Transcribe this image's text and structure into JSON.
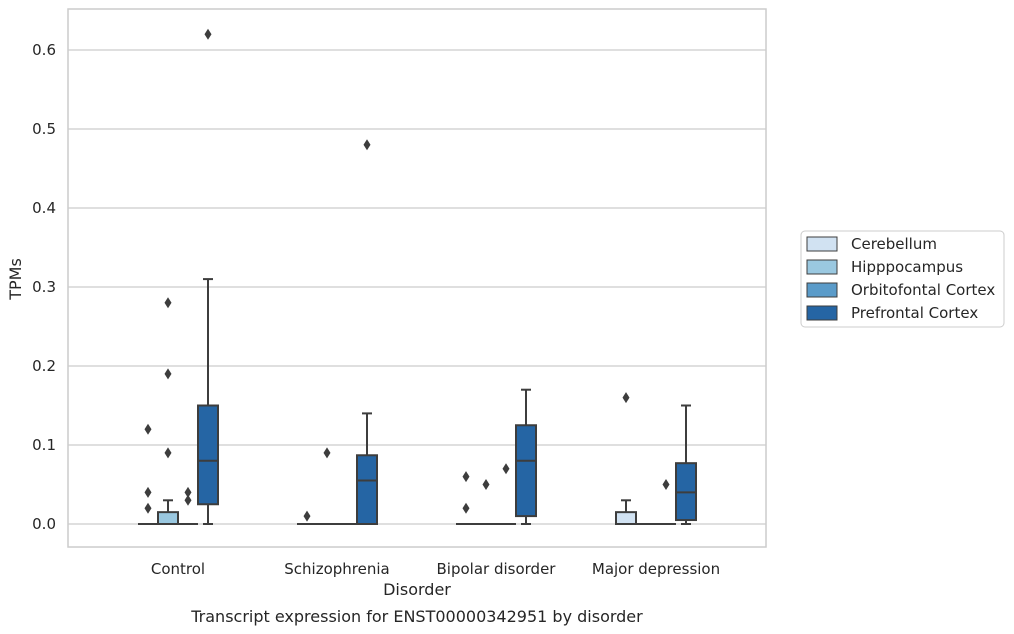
{
  "chart_data": {
    "type": "box",
    "title": "",
    "caption": "Transcript expression for ENST00000342951 by disorder",
    "xlabel": "Disorder",
    "ylabel": "TPMs",
    "ylim": [
      -0.03,
      0.655
    ],
    "yticks": [
      0.0,
      0.1,
      0.2,
      0.3,
      0.4,
      0.5,
      0.6
    ],
    "ytick_labels": [
      "0.0",
      "0.1",
      "0.2",
      "0.3",
      "0.4",
      "0.5",
      "0.6"
    ],
    "grid": true,
    "legend_placement": "right",
    "categories": [
      "Control",
      "Schizophrenia",
      "Bipolar disorder",
      "Major depression"
    ],
    "series": [
      {
        "name": "Cerebellum",
        "color": "#d1e2f2",
        "boxes": [
          {
            "whislo": 0.0,
            "q1": 0.0,
            "med": 0.0,
            "q3": 0.0,
            "whishi": 0.0,
            "fliers": [
              0.12,
              0.04,
              0.02
            ]
          },
          {
            "whislo": 0.0,
            "q1": 0.0,
            "med": 0.0,
            "q3": 0.0,
            "whishi": 0.0,
            "fliers": [
              0.01
            ]
          },
          {
            "whislo": 0.0,
            "q1": 0.0,
            "med": 0.0,
            "q3": 0.0,
            "whishi": 0.0,
            "fliers": [
              0.06,
              0.02
            ]
          },
          {
            "whislo": 0.0,
            "q1": 0.0,
            "med": 0.0,
            "q3": 0.015,
            "whishi": 0.03,
            "fliers": [
              0.16
            ]
          }
        ]
      },
      {
        "name": "Hipppocampus",
        "color": "#9ac8e0",
        "boxes": [
          {
            "whislo": 0.0,
            "q1": 0.0,
            "med": 0.0,
            "q3": 0.015,
            "whishi": 0.03,
            "fliers": [
              0.28,
              0.19,
              0.09
            ]
          },
          {
            "whislo": 0.0,
            "q1": 0.0,
            "med": 0.0,
            "q3": 0.0,
            "whishi": 0.0,
            "fliers": [
              0.09
            ]
          },
          {
            "whislo": 0.0,
            "q1": 0.0,
            "med": 0.0,
            "q3": 0.0,
            "whishi": 0.0,
            "fliers": [
              0.05
            ]
          },
          {
            "whislo": 0.0,
            "q1": 0.0,
            "med": 0.0,
            "q3": 0.0,
            "whishi": 0.0,
            "fliers": []
          }
        ]
      },
      {
        "name": "Orbitofontal Cortex",
        "color": "#5a9bc9",
        "boxes": [
          {
            "whislo": 0.0,
            "q1": 0.0,
            "med": 0.0,
            "q3": 0.0,
            "whishi": 0.0,
            "fliers": [
              0.04,
              0.03
            ]
          },
          {
            "whislo": 0.0,
            "q1": 0.0,
            "med": 0.0,
            "q3": 0.0,
            "whishi": 0.0,
            "fliers": []
          },
          {
            "whislo": 0.0,
            "q1": 0.0,
            "med": 0.0,
            "q3": 0.0,
            "whishi": 0.0,
            "fliers": [
              0.07
            ]
          },
          {
            "whislo": 0.0,
            "q1": 0.0,
            "med": 0.0,
            "q3": 0.0,
            "whishi": 0.0,
            "fliers": [
              0.05
            ]
          }
        ]
      },
      {
        "name": "Prefrontal Cortex",
        "color": "#2565a4",
        "boxes": [
          {
            "whislo": 0.0,
            "q1": 0.025,
            "med": 0.08,
            "q3": 0.15,
            "whishi": 0.31,
            "fliers": [
              0.62
            ]
          },
          {
            "whislo": 0.0,
            "q1": 0.0,
            "med": 0.055,
            "q3": 0.087,
            "whishi": 0.14,
            "fliers": [
              0.48
            ]
          },
          {
            "whislo": 0.0,
            "q1": 0.01,
            "med": 0.08,
            "q3": 0.125,
            "whishi": 0.17,
            "fliers": []
          },
          {
            "whislo": 0.0,
            "q1": 0.005,
            "med": 0.04,
            "q3": 0.077,
            "whishi": 0.15,
            "fliers": []
          }
        ]
      }
    ]
  }
}
